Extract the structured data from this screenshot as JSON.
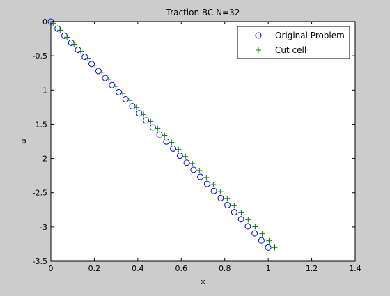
{
  "chart_data": {
    "type": "scatter",
    "title": "Traction BC N=32",
    "xlabel": "x",
    "ylabel": "u",
    "xlim": [
      0,
      1.4
    ],
    "ylim": [
      -3.5,
      0
    ],
    "xticks": [
      0,
      0.2,
      0.4,
      0.6,
      0.8,
      1,
      1.2,
      1.4
    ],
    "yticks": [
      0,
      -0.5,
      -1,
      -1.5,
      -2,
      -2.5,
      -3,
      -3.5
    ],
    "xtick_labels": [
      "0",
      "0.2",
      "0.4",
      "0.6",
      "0.8",
      "1",
      "1.2",
      "1.4"
    ],
    "ytick_labels": [
      "0",
      "-0.5",
      "-1",
      "-1.5",
      "-2",
      "-2.5",
      "-3",
      "-3.5"
    ],
    "grid": false,
    "legend_position": "top-right",
    "series": [
      {
        "name": "Original Problem",
        "marker": "circle",
        "color": "#0000ff",
        "x": [
          0,
          0.0313,
          0.0625,
          0.0938,
          0.125,
          0.1563,
          0.1875,
          0.2188,
          0.25,
          0.2813,
          0.3125,
          0.3438,
          0.375,
          0.4063,
          0.4375,
          0.4688,
          0.5,
          0.5313,
          0.5625,
          0.5938,
          0.625,
          0.6563,
          0.6875,
          0.7188,
          0.75,
          0.7813,
          0.8125,
          0.8438,
          0.875,
          0.9063,
          0.9375,
          0.9688,
          1.0
        ],
        "y": [
          0,
          -0.1031,
          -0.2062,
          -0.3094,
          -0.4125,
          -0.5156,
          -0.6188,
          -0.7219,
          -0.825,
          -0.9281,
          -1.0313,
          -1.1344,
          -1.2375,
          -1.3406,
          -1.4438,
          -1.5469,
          -1.65,
          -1.7531,
          -1.8563,
          -1.9594,
          -2.0625,
          -2.1656,
          -2.2688,
          -2.3719,
          -2.475,
          -2.5781,
          -2.6813,
          -2.7844,
          -2.8875,
          -2.9906,
          -3.0938,
          -3.1969,
          -3.3
        ]
      },
      {
        "name": "Cut cell",
        "marker": "plus",
        "color": "#008000",
        "x": [
          0.01,
          0.0421,
          0.0741,
          0.1062,
          0.1383,
          0.1703,
          0.2024,
          0.2344,
          0.2665,
          0.2986,
          0.3306,
          0.3627,
          0.3948,
          0.4268,
          0.4589,
          0.491,
          0.523,
          0.5551,
          0.5872,
          0.6192,
          0.6513,
          0.6833,
          0.7154,
          0.7475,
          0.7795,
          0.8116,
          0.8437,
          0.8757,
          0.9078,
          0.9399,
          0.9719,
          1.004,
          1.03
        ],
        "y": [
          -0.0233,
          -0.1258,
          -0.2284,
          -0.3309,
          -0.4334,
          -0.5359,
          -0.6384,
          -0.741,
          -0.8435,
          -0.946,
          -1.0485,
          -1.1511,
          -1.2536,
          -1.3561,
          -1.4586,
          -1.5611,
          -1.6637,
          -1.7662,
          -1.8687,
          -1.9712,
          -2.0738,
          -2.1763,
          -2.2788,
          -2.3813,
          -2.4838,
          -2.5864,
          -2.6889,
          -2.7914,
          -2.8939,
          -2.9965,
          -3.099,
          -3.2015,
          -3.2999
        ]
      }
    ]
  }
}
